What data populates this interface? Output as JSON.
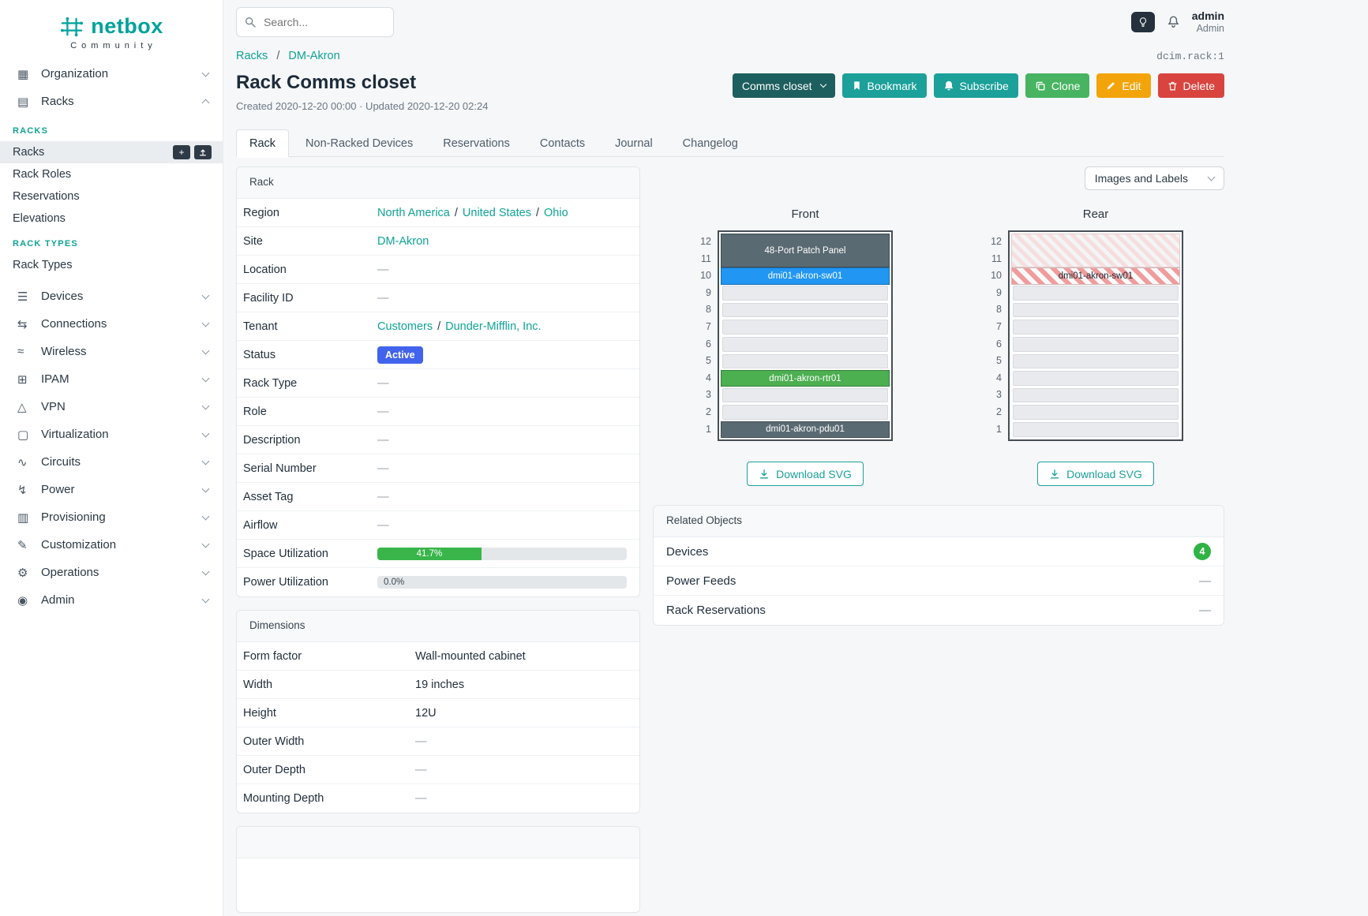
{
  "topbar": {
    "search_placeholder": "Search...",
    "user_name": "admin",
    "user_role": "Admin"
  },
  "sidebar": {
    "logo": "netbox",
    "tagline": "Community",
    "items": [
      {
        "label": "Organization",
        "icon": "building-icon",
        "glyph": "▦"
      },
      {
        "label": "Racks",
        "icon": "rack-icon",
        "glyph": "▤",
        "expanded": true
      },
      {
        "label": "Devices",
        "icon": "devices-icon",
        "glyph": "☰"
      },
      {
        "label": "Connections",
        "icon": "connections-icon",
        "glyph": "⇆"
      },
      {
        "label": "Wireless",
        "icon": "wireless-icon",
        "glyph": "≈"
      },
      {
        "label": "IPAM",
        "icon": "ipam-icon",
        "glyph": "⊞"
      },
      {
        "label": "VPN",
        "icon": "vpn-icon",
        "glyph": "△"
      },
      {
        "label": "Virtualization",
        "icon": "virtualization-icon",
        "glyph": "▢"
      },
      {
        "label": "Circuits",
        "icon": "circuits-icon",
        "glyph": "∿"
      },
      {
        "label": "Power",
        "icon": "power-icon",
        "glyph": "↯"
      },
      {
        "label": "Provisioning",
        "icon": "provisioning-icon",
        "glyph": "▥"
      },
      {
        "label": "Customization",
        "icon": "customization-icon",
        "glyph": "✎"
      },
      {
        "label": "Operations",
        "icon": "operations-icon",
        "glyph": "⚙"
      },
      {
        "label": "Admin",
        "icon": "admin-icon",
        "glyph": "◉"
      }
    ],
    "racks_group": {
      "heading": "RACKS",
      "items": [
        "Racks",
        "Rack Roles",
        "Reservations",
        "Elevations"
      ],
      "active_item": "Racks"
    },
    "rack_types_group": {
      "heading": "RACK TYPES",
      "items": [
        "Rack Types"
      ]
    }
  },
  "breadcrumb": {
    "parent": "Racks",
    "current": "DM-Akron",
    "object_id": "dcim.rack:1"
  },
  "page": {
    "title": "Rack Comms closet",
    "meta": "Created 2020-12-20 00:00 · Updated 2020-12-20 02:24"
  },
  "actions": {
    "context_label": "Comms closet",
    "bookmark": "Bookmark",
    "subscribe": "Subscribe",
    "clone": "Clone",
    "edit": "Edit",
    "delete": "Delete"
  },
  "tabs": [
    {
      "label": "Rack",
      "active": true
    },
    {
      "label": "Non-Racked Devices"
    },
    {
      "label": "Reservations"
    },
    {
      "label": "Contacts"
    },
    {
      "label": "Journal"
    },
    {
      "label": "Changelog"
    }
  ],
  "rack_card": {
    "title": "Rack",
    "rows": {
      "region": {
        "label": "Region",
        "parts": [
          "North America",
          "United States",
          "Ohio"
        ]
      },
      "site": {
        "label": "Site",
        "value": "DM-Akron"
      },
      "location": {
        "label": "Location",
        "value": "—"
      },
      "facility_id": {
        "label": "Facility ID",
        "value": "—"
      },
      "tenant": {
        "label": "Tenant",
        "parts": [
          "Customers",
          "Dunder-Mifflin, Inc."
        ]
      },
      "status": {
        "label": "Status",
        "value": "Active"
      },
      "rack_type": {
        "label": "Rack Type",
        "value": "—"
      },
      "role": {
        "label": "Role",
        "value": "—"
      },
      "description": {
        "label": "Description",
        "value": "—"
      },
      "serial_number": {
        "label": "Serial Number",
        "value": "—"
      },
      "asset_tag": {
        "label": "Asset Tag",
        "value": "—"
      },
      "airflow": {
        "label": "Airflow",
        "value": "—"
      },
      "space_utilization": {
        "label": "Space Utilization",
        "value": "41.7%",
        "percent": 41.7
      },
      "power_utilization": {
        "label": "Power Utilization",
        "value": "0.0%",
        "percent": 0
      }
    }
  },
  "dimensions_card": {
    "title": "Dimensions",
    "rows": [
      {
        "label": "Form factor",
        "value": "Wall-mounted cabinet"
      },
      {
        "label": "Width",
        "value": "19 inches"
      },
      {
        "label": "Height",
        "value": "12U"
      },
      {
        "label": "Outer Width",
        "value": "—"
      },
      {
        "label": "Outer Depth",
        "value": "—"
      },
      {
        "label": "Mounting Depth",
        "value": "—"
      }
    ]
  },
  "elevation": {
    "control_label": "Images and Labels",
    "download_label": "Download SVG",
    "front": {
      "title": "Front",
      "units": [
        {
          "kind": "device",
          "span": 2,
          "label": "48-Port Patch Panel",
          "color": "#5a6a72"
        },
        {
          "kind": "device",
          "span": 1,
          "label": "dmi01-akron-sw01",
          "color": "#2196f3"
        },
        {
          "kind": "empty"
        },
        {
          "kind": "empty"
        },
        {
          "kind": "empty"
        },
        {
          "kind": "empty"
        },
        {
          "kind": "empty"
        },
        {
          "kind": "device",
          "span": 1,
          "label": "dmi01-akron-rtr01",
          "color": "#4caf50"
        },
        {
          "kind": "empty"
        },
        {
          "kind": "empty"
        },
        {
          "kind": "device",
          "span": 1,
          "label": "dmi01-akron-pdu01",
          "color": "#5a6a72"
        }
      ]
    },
    "rear": {
      "title": "Rear",
      "units": [
        {
          "kind": "ghost",
          "span": 2
        },
        {
          "kind": "ghost-strong",
          "span": 1,
          "label": "dmi01-akron-sw01"
        },
        {
          "kind": "empty"
        },
        {
          "kind": "empty"
        },
        {
          "kind": "empty"
        },
        {
          "kind": "empty"
        },
        {
          "kind": "empty"
        },
        {
          "kind": "empty"
        },
        {
          "kind": "empty"
        },
        {
          "kind": "empty"
        },
        {
          "kind": "empty"
        }
      ]
    }
  },
  "related_card": {
    "title": "Related Objects",
    "rows": [
      {
        "label": "Devices",
        "badge": "4"
      },
      {
        "label": "Power Feeds",
        "value": "—"
      },
      {
        "label": "Rack Reservations",
        "value": "—"
      }
    ]
  },
  "colors": {
    "brand": "#00a29c",
    "link": "#0fa396",
    "status_active": "#4263eb",
    "progress_green": "#39b54a",
    "badge_green": "#2fb344",
    "btn_dark": "#1d5e5e",
    "btn_teal": "#1ca09a",
    "btn_green": "#48b461",
    "btn_orange": "#f3a40b",
    "btn_red": "#d9443f",
    "device_slate": "#5a6a72",
    "device_blue": "#2196f3",
    "device_green": "#4caf50"
  }
}
